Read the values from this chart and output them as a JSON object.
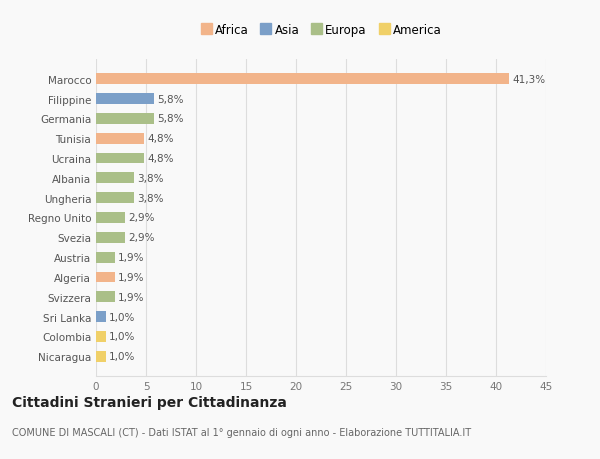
{
  "countries": [
    "Marocco",
    "Filippine",
    "Germania",
    "Tunisia",
    "Ucraina",
    "Albania",
    "Ungheria",
    "Regno Unito",
    "Svezia",
    "Austria",
    "Algeria",
    "Svizzera",
    "Sri Lanka",
    "Colombia",
    "Nicaragua"
  ],
  "values": [
    41.3,
    5.8,
    5.8,
    4.8,
    4.8,
    3.8,
    3.8,
    2.9,
    2.9,
    1.9,
    1.9,
    1.9,
    1.0,
    1.0,
    1.0
  ],
  "labels": [
    "41,3%",
    "5,8%",
    "5,8%",
    "4,8%",
    "4,8%",
    "3,8%",
    "3,8%",
    "2,9%",
    "2,9%",
    "1,9%",
    "1,9%",
    "1,9%",
    "1,0%",
    "1,0%",
    "1,0%"
  ],
  "continents": [
    "Africa",
    "Asia",
    "Europa",
    "Africa",
    "Europa",
    "Europa",
    "Europa",
    "Europa",
    "Europa",
    "Europa",
    "Africa",
    "Europa",
    "Asia",
    "America",
    "America"
  ],
  "colors": {
    "Africa": "#F2B48A",
    "Asia": "#7B9FC8",
    "Europa": "#AABF88",
    "America": "#F0D068"
  },
  "xlim": [
    0,
    45
  ],
  "xticks": [
    0,
    5,
    10,
    15,
    20,
    25,
    30,
    35,
    40,
    45
  ],
  "title": "Cittadini Stranieri per Cittadinanza",
  "subtitle": "COMUNE DI MASCALI (CT) - Dati ISTAT al 1° gennaio di ogni anno - Elaborazione TUTTITALIA.IT",
  "background_color": "#f9f9f9",
  "grid_color": "#dddddd",
  "bar_height": 0.55,
  "label_fontsize": 7.5,
  "ytick_fontsize": 7.5,
  "xtick_fontsize": 7.5,
  "title_fontsize": 10,
  "subtitle_fontsize": 7,
  "legend_fontsize": 8.5
}
